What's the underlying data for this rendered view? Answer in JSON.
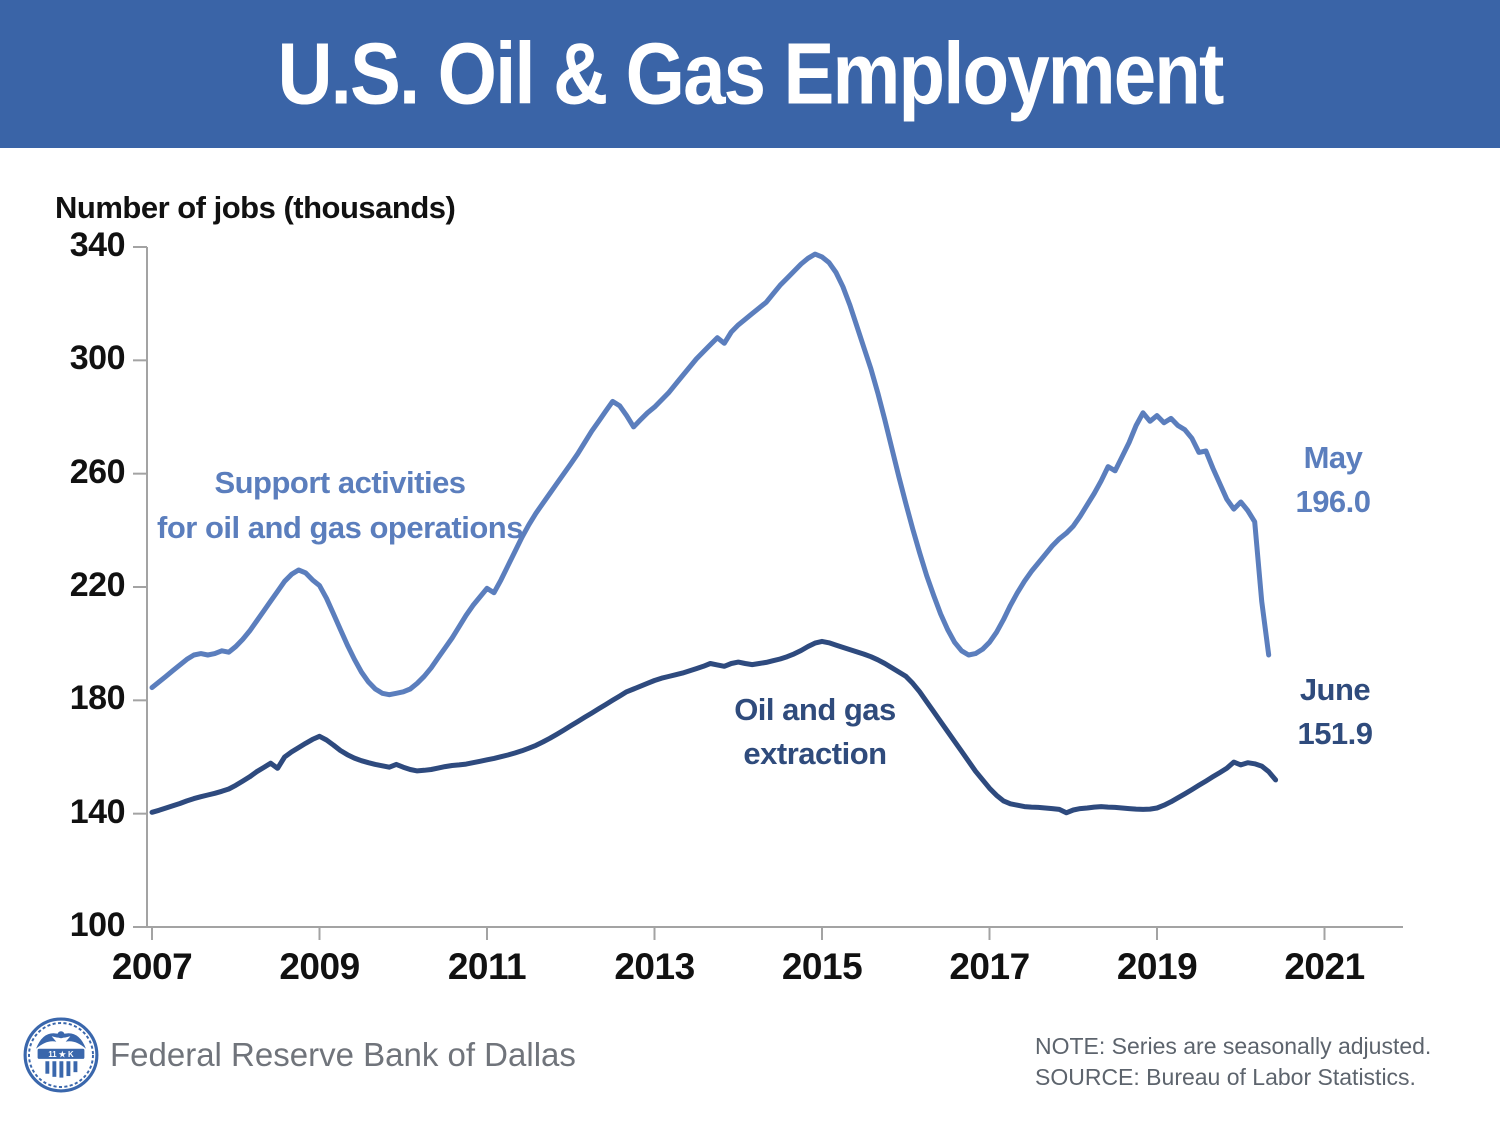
{
  "header": {
    "title": "U.S. Oil & Gas Employment"
  },
  "chart": {
    "y_axis_title": "Number of jobs (thousands)",
    "annotations": {
      "support": {
        "label_line1": "Support activities",
        "label_line2": "for oil and gas operations",
        "latest_month": "May",
        "latest_value": "196.0"
      },
      "extraction": {
        "label_line1": "Oil and gas",
        "label_line2": "extraction",
        "latest_month": "June",
        "latest_value": "151.9"
      }
    },
    "colors": {
      "banner": "#3A64A7",
      "support": "#5B7EBD",
      "extraction": "#2E4A7E",
      "axis": "#A3A3A3",
      "tick_text": "#111111"
    }
  },
  "chart_data": {
    "type": "line",
    "title": "U.S. Oil & Gas Employment",
    "ylabel": "Number of jobs (thousands)",
    "ylim": [
      100,
      340
    ],
    "y_ticks": [
      340,
      300,
      260,
      220,
      180,
      140,
      100
    ],
    "x_ticks": [
      2007,
      2009,
      2011,
      2013,
      2015,
      2017,
      2019,
      2021
    ],
    "frequency": "monthly",
    "x_start": "2007-01",
    "grid": false,
    "legend_position": "inline-labels",
    "series": [
      {
        "name": "Support activities for oil and gas operations",
        "color": "#5B7EBD",
        "last_point_label": "May 196.0",
        "values": [
          184.5,
          186.5,
          188.5,
          190.5,
          192.5,
          194.5,
          196.0,
          196.5,
          196.0,
          196.5,
          197.5,
          197.0,
          199.0,
          201.5,
          204.5,
          208.0,
          211.5,
          215.0,
          218.5,
          222.0,
          224.5,
          226.0,
          225.0,
          222.5,
          220.5,
          216.0,
          210.5,
          205.0,
          199.5,
          194.5,
          190.0,
          186.5,
          184.0,
          182.5,
          182.0,
          182.5,
          183.0,
          184.0,
          186.0,
          188.5,
          191.5,
          195.0,
          198.5,
          202.0,
          206.0,
          210.0,
          213.5,
          216.5,
          219.5,
          218.0,
          222.5,
          227.5,
          232.5,
          237.5,
          242.0,
          246.0,
          249.5,
          253.0,
          256.5,
          260.0,
          263.5,
          267.0,
          271.0,
          275.0,
          278.5,
          282.0,
          285.5,
          284.0,
          280.5,
          276.5,
          279.0,
          281.5,
          283.5,
          286.0,
          288.5,
          291.5,
          294.5,
          297.5,
          300.5,
          303.0,
          305.5,
          308.0,
          306.0,
          310.0,
          312.5,
          314.5,
          316.5,
          318.5,
          320.5,
          323.5,
          326.5,
          329.0,
          331.5,
          334.0,
          336.0,
          337.5,
          336.5,
          334.5,
          331.0,
          326.0,
          319.5,
          312.0,
          304.5,
          297.0,
          288.5,
          279.0,
          269.0,
          259.0,
          249.5,
          240.5,
          232.0,
          224.0,
          217.0,
          210.5,
          205.0,
          200.5,
          197.5,
          196.0,
          196.5,
          198.0,
          200.5,
          204.0,
          208.5,
          213.5,
          218.0,
          222.0,
          225.5,
          228.5,
          231.5,
          234.5,
          237.0,
          239.0,
          241.5,
          245.0,
          249.0,
          253.0,
          257.5,
          262.5,
          261.0,
          266.0,
          271.0,
          277.0,
          281.5,
          278.5,
          280.5,
          278.0,
          279.5,
          277.0,
          275.5,
          272.5,
          267.5,
          268.0,
          262.0,
          256.5,
          251.0,
          247.5,
          250.0,
          247.0,
          243.0,
          215.0,
          196.0
        ]
      },
      {
        "name": "Oil and gas extraction",
        "color": "#2E4A7E",
        "last_point_label": "June 151.9",
        "values": [
          140.5,
          141.2,
          142.0,
          142.8,
          143.6,
          144.5,
          145.3,
          146.0,
          146.6,
          147.2,
          147.9,
          148.7,
          150.0,
          151.5,
          153.0,
          154.8,
          156.3,
          157.8,
          156.0,
          160.0,
          161.8,
          163.3,
          164.8,
          166.2,
          167.3,
          166.0,
          164.2,
          162.3,
          160.8,
          159.6,
          158.7,
          158.0,
          157.4,
          156.9,
          156.4,
          157.4,
          156.4,
          155.6,
          155.1,
          155.3,
          155.6,
          156.1,
          156.6,
          157.0,
          157.2,
          157.5,
          158.0,
          158.5,
          159.0,
          159.5,
          160.1,
          160.7,
          161.4,
          162.2,
          163.1,
          164.1,
          165.3,
          166.6,
          168.0,
          169.5,
          171.0,
          172.5,
          174.0,
          175.5,
          177.0,
          178.5,
          180.0,
          181.5,
          183.0,
          184.0,
          185.0,
          186.0,
          187.0,
          187.8,
          188.4,
          189.0,
          189.6,
          190.4,
          191.2,
          192.0,
          193.0,
          192.5,
          192.0,
          193.0,
          193.5,
          193.0,
          192.6,
          193.0,
          193.4,
          194.0,
          194.6,
          195.4,
          196.4,
          197.6,
          199.0,
          200.2,
          200.8,
          200.3,
          199.5,
          198.7,
          197.9,
          197.1,
          196.3,
          195.4,
          194.3,
          193.0,
          191.5,
          190.0,
          188.5,
          186.0,
          183.0,
          179.5,
          176.0,
          172.5,
          169.0,
          165.5,
          162.0,
          158.5,
          155.0,
          152.0,
          149.0,
          146.5,
          144.5,
          143.5,
          143.0,
          142.5,
          142.3,
          142.2,
          142.0,
          141.8,
          141.5,
          140.3,
          141.3,
          141.8,
          142.0,
          142.3,
          142.5,
          142.3,
          142.2,
          142.0,
          141.8,
          141.6,
          141.5,
          141.6,
          142.0,
          143.0,
          144.2,
          145.6,
          147.0,
          148.5,
          150.0,
          151.5,
          153.0,
          154.5,
          156.0,
          158.2,
          157.2,
          158.0,
          157.6,
          156.8,
          154.8,
          151.9
        ]
      }
    ]
  },
  "footer": {
    "bank_name": "Federal Reserve Bank of Dallas",
    "seal_text": "11 ★ K",
    "note": "NOTE: Series are seasonally adjusted.",
    "source": "SOURCE: Bureau of Labor Statistics."
  }
}
